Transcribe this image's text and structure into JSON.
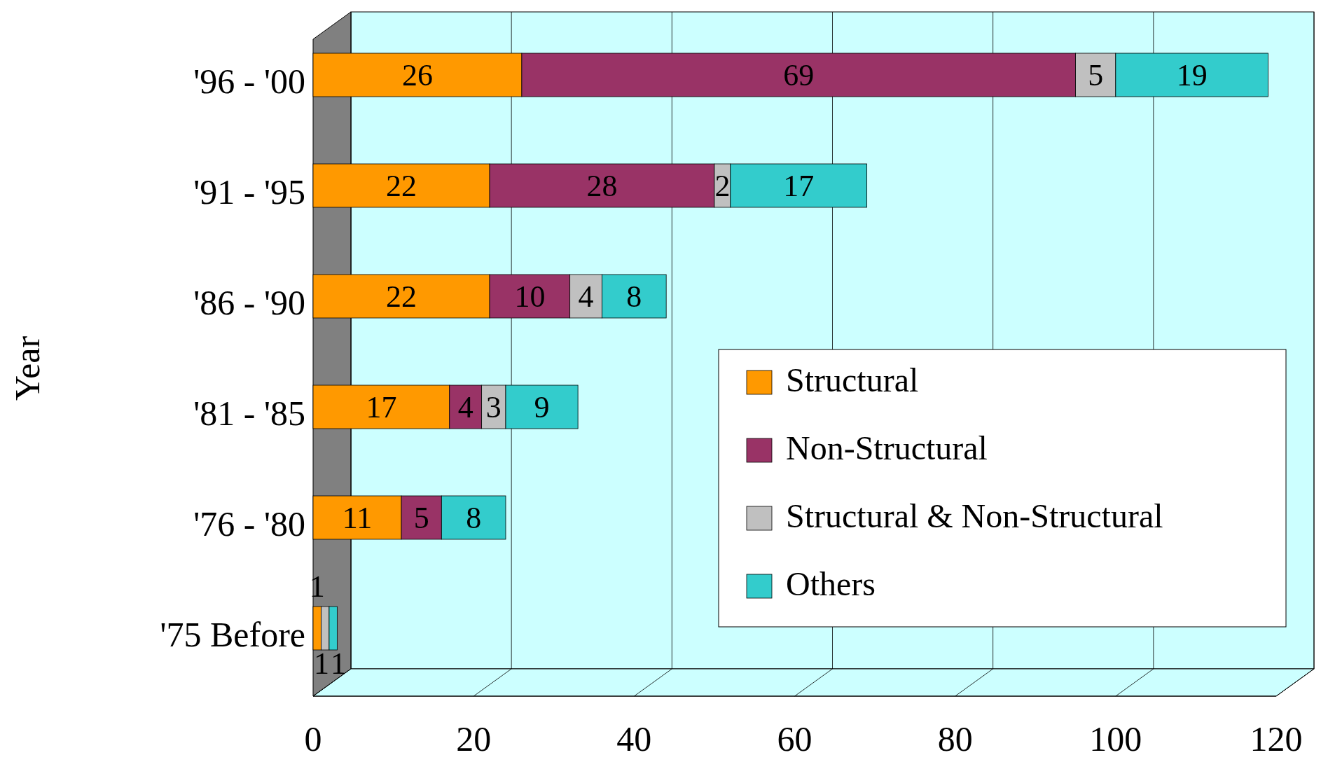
{
  "chart_data": {
    "type": "bar",
    "orientation": "horizontal",
    "stacked": true,
    "ylabel": "Year",
    "categories": [
      "'96 - '00",
      "'91 - '95",
      "'86 - '90",
      "'81 - '85",
      "'76 - '80",
      "'75 Before"
    ],
    "series": [
      {
        "name": "Structural",
        "color": "#ff9900",
        "values": [
          26,
          22,
          22,
          17,
          11,
          1
        ]
      },
      {
        "name": "Non-Structural",
        "color": "#993366",
        "values": [
          69,
          28,
          10,
          4,
          5,
          null
        ]
      },
      {
        "name": "Structural & Non-Structural",
        "color": "#c0c0c0",
        "values": [
          5,
          2,
          4,
          3,
          null,
          1
        ]
      },
      {
        "name": "Others",
        "color": "#33cccc",
        "values": [
          19,
          17,
          8,
          9,
          8,
          1
        ]
      }
    ],
    "xlim": [
      0,
      120
    ],
    "xticks": [
      0,
      20,
      40,
      60,
      80,
      100,
      120
    ],
    "grid": "x",
    "legend": "bottom right",
    "data_labels": true
  }
}
